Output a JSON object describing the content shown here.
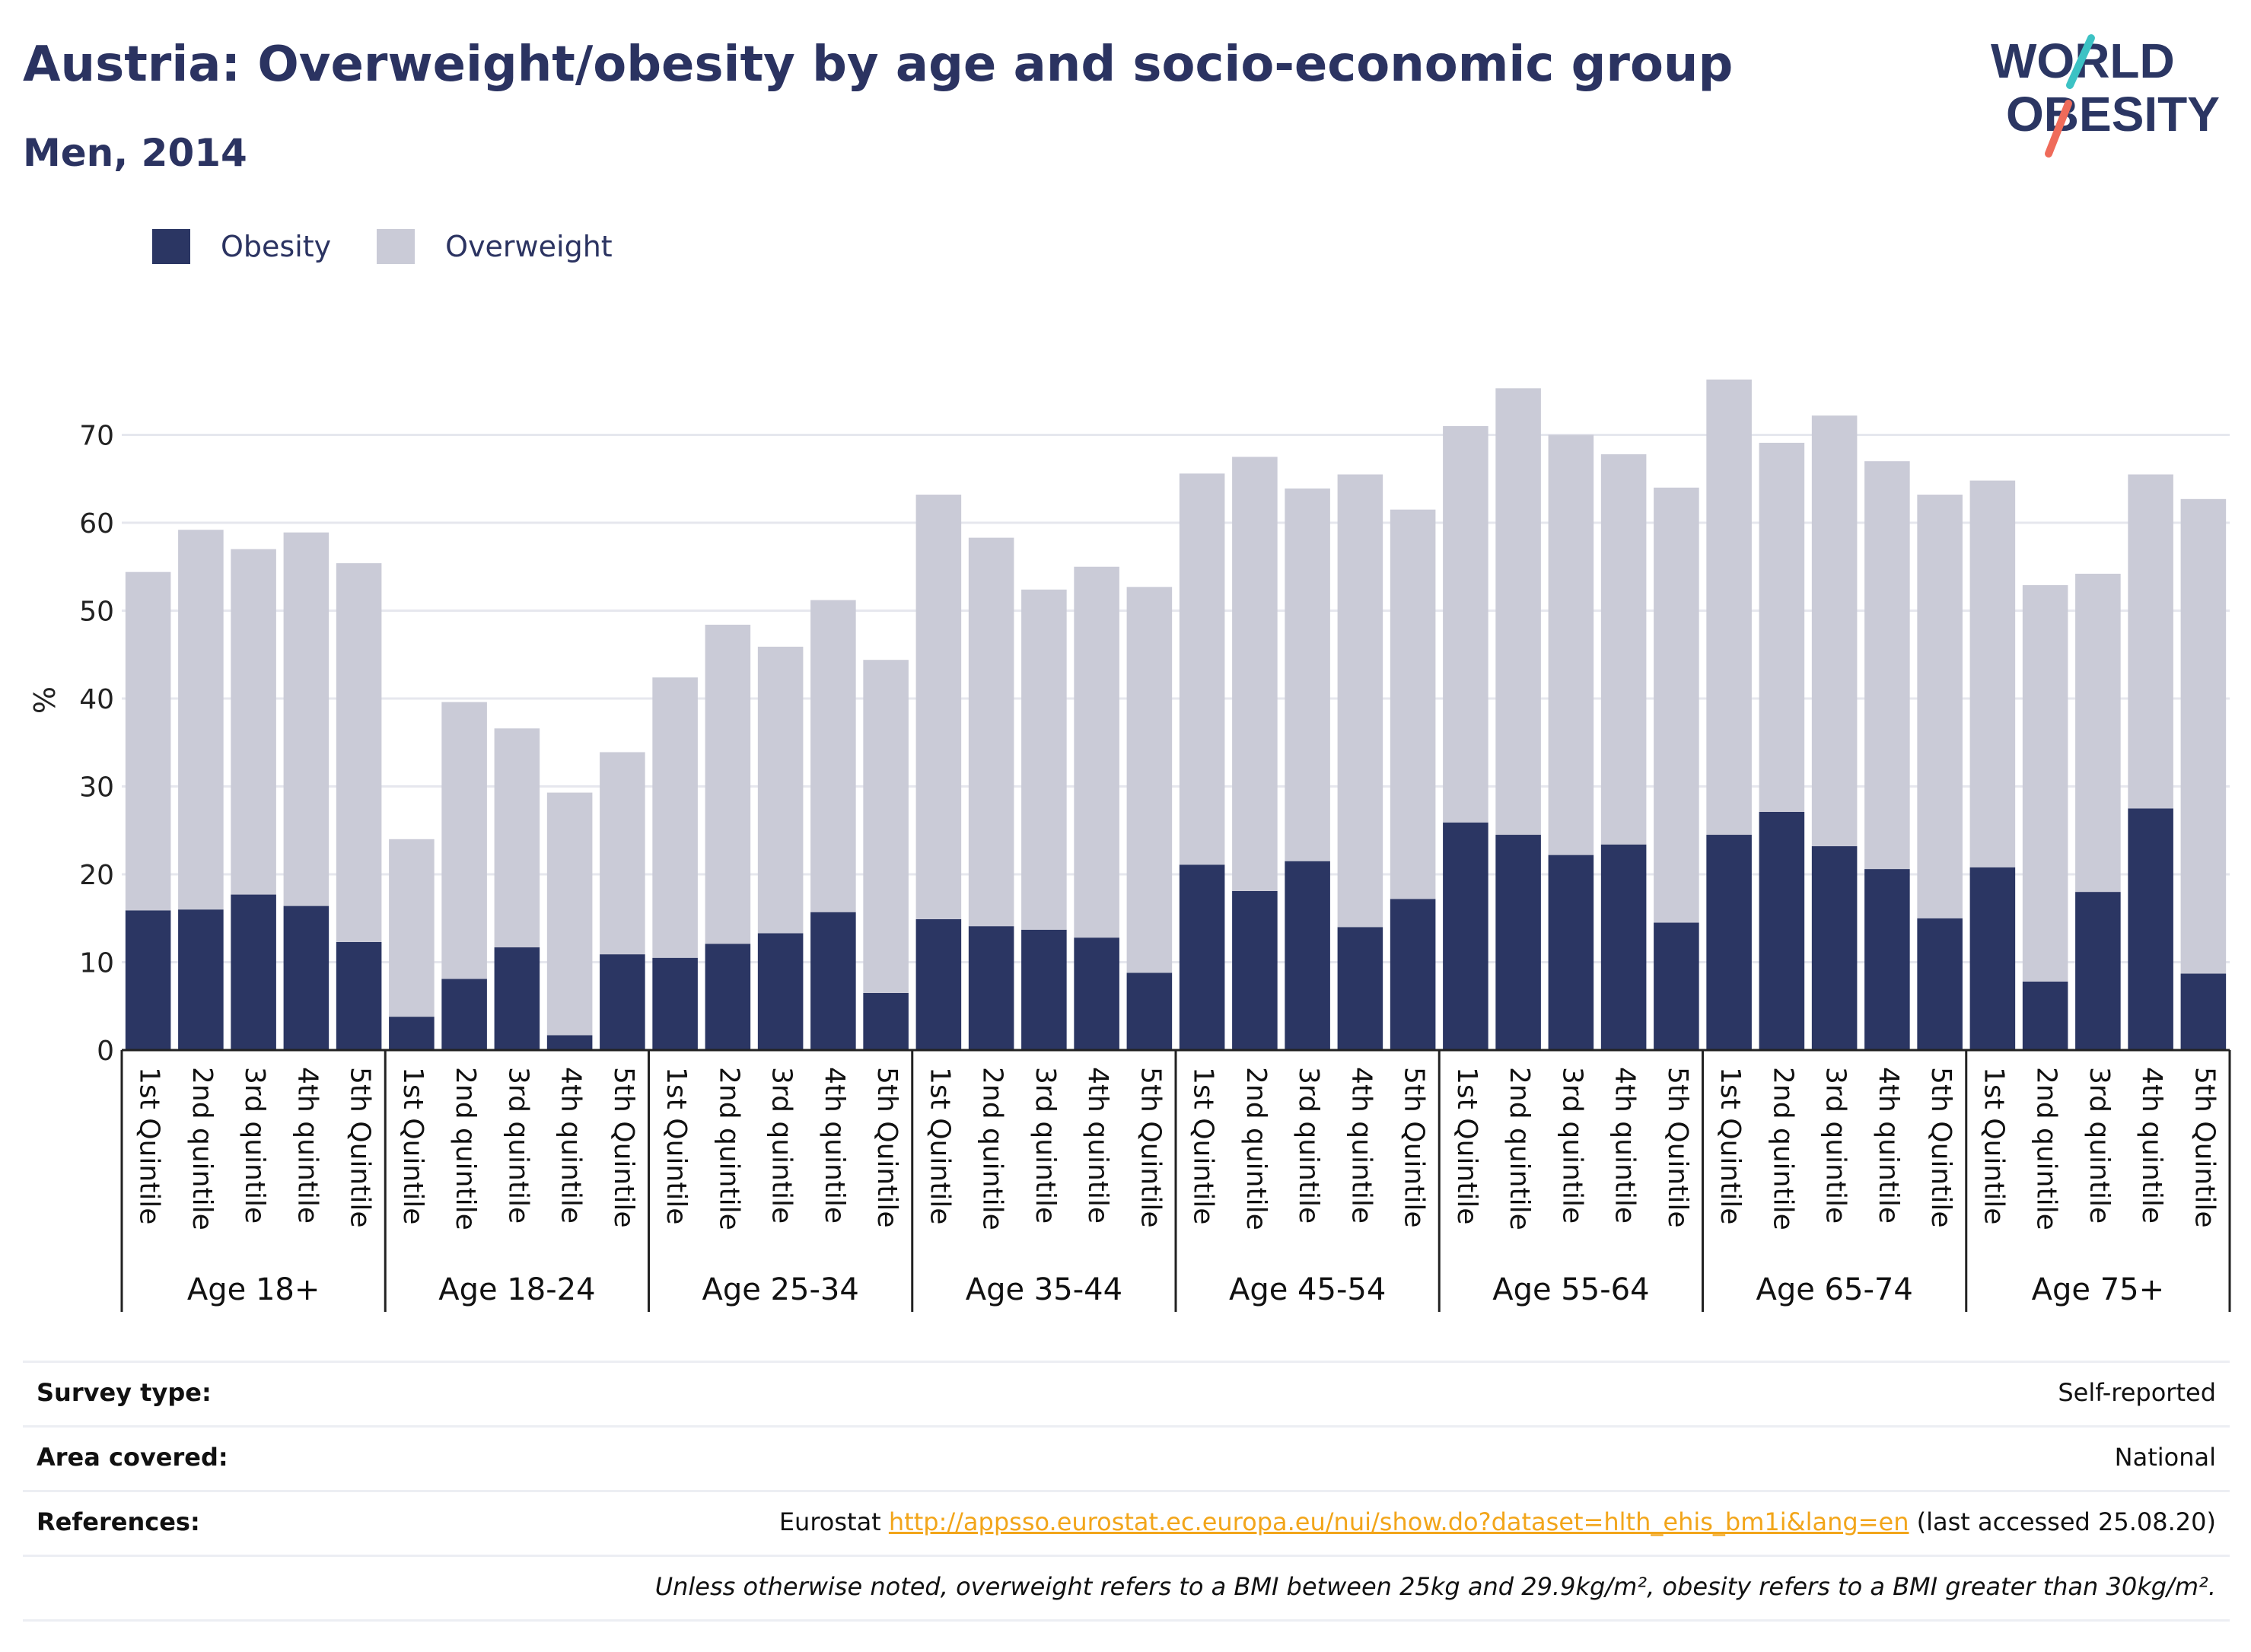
{
  "header": {
    "title": "Austria: Overweight/obesity by age and socio-economic group",
    "subtitle": "Men, 2014"
  },
  "logo": {
    "line1": "WORLD",
    "line2": "OBESITY"
  },
  "colors": {
    "obesity": "#2b3663",
    "overweight": "#cacbd7",
    "text": "#2b3361",
    "link": "#f2a51a"
  },
  "legend": [
    {
      "name": "Obesity",
      "color": "#2b3663"
    },
    {
      "name": "Overweight",
      "color": "#cacbd7"
    }
  ],
  "chart_data": {
    "type": "bar",
    "stacked": true,
    "ylabel": "%",
    "ylim": [
      0,
      80
    ],
    "yticks": [
      0,
      10,
      20,
      30,
      40,
      50,
      60,
      70
    ],
    "grid": true,
    "legend_position": "top-left",
    "groups": [
      "Age 18+",
      "Age 18-24",
      "Age 25-34",
      "Age 35-44",
      "Age 45-54",
      "Age 55-64",
      "Age 65-74",
      "Age 75+"
    ],
    "categories": [
      [
        "1st Quintile",
        "2nd quintile",
        "3rd quintile",
        "4th quintile",
        "5th Quintile"
      ],
      [
        "1st Quintile",
        "2nd quintile",
        "3rd quintile",
        "4th quintile",
        "5th Quintile"
      ],
      [
        "1st Quintile",
        "2nd quintile",
        "3rd quintile",
        "4th quintile",
        "5th Quintile"
      ],
      [
        "1st Quintile",
        "2nd quintile",
        "3rd quintile",
        "4th quintile",
        "5th Quintile"
      ],
      [
        "1st Quintile",
        "2nd quintile",
        "3rd quintile",
        "4th quintile",
        "5th Quintile"
      ],
      [
        "1st Quintile",
        "2nd quintile",
        "3rd quintile",
        "4th quintile",
        "5th Quintile"
      ],
      [
        "1st Quintile",
        "2nd quintile",
        "3rd quintile",
        "4th quintile",
        "5th Quintile"
      ],
      [
        "1st Quintile",
        "2nd quintile",
        "3rd quintile",
        "4th quintile",
        "5th Quintile"
      ]
    ],
    "series": [
      {
        "name": "Obesity",
        "values": [
          [
            15.9,
            16.0,
            17.7,
            16.4,
            12.3
          ],
          [
            3.8,
            8.1,
            11.7,
            1.7,
            10.9
          ],
          [
            10.5,
            12.1,
            13.3,
            15.7,
            6.5
          ],
          [
            14.9,
            14.1,
            13.7,
            12.8,
            8.8
          ],
          [
            21.1,
            18.1,
            21.5,
            14.0,
            17.2
          ],
          [
            25.9,
            24.5,
            22.2,
            23.4,
            14.5
          ],
          [
            24.5,
            27.1,
            23.2,
            20.6,
            15.0
          ],
          [
            20.8,
            7.8,
            18.0,
            27.5,
            8.7
          ]
        ]
      },
      {
        "name": "Overweight",
        "values": [
          [
            38.5,
            43.2,
            39.3,
            42.5,
            43.1
          ],
          [
            20.2,
            31.5,
            24.9,
            27.6,
            23.0
          ],
          [
            31.9,
            36.3,
            32.6,
            35.5,
            37.9
          ],
          [
            48.3,
            44.2,
            38.7,
            42.2,
            43.9
          ],
          [
            44.5,
            49.4,
            42.4,
            51.5,
            44.3
          ],
          [
            45.1,
            50.8,
            47.8,
            44.4,
            49.5
          ],
          [
            51.8,
            42.0,
            49.0,
            46.4,
            48.2
          ],
          [
            44.0,
            45.1,
            36.2,
            38.0,
            54.0
          ]
        ]
      }
    ]
  },
  "info_table": [
    {
      "label": "Survey type:",
      "value": "Self-reported"
    },
    {
      "label": "Area covered:",
      "value": "National"
    },
    {
      "label": "References:",
      "prefix": "Eurostat ",
      "link": "http://appsso.eurostat.ec.europa.eu/nui/show.do?dataset=hlth_ehis_bm1i&lang=en",
      "suffix": " (last accessed 25.08.20)"
    }
  ],
  "note": "Unless otherwise noted, overweight refers to a BMI between 25kg and 29.9kg/m², obesity refers to a BMI greater than 30kg/m²."
}
